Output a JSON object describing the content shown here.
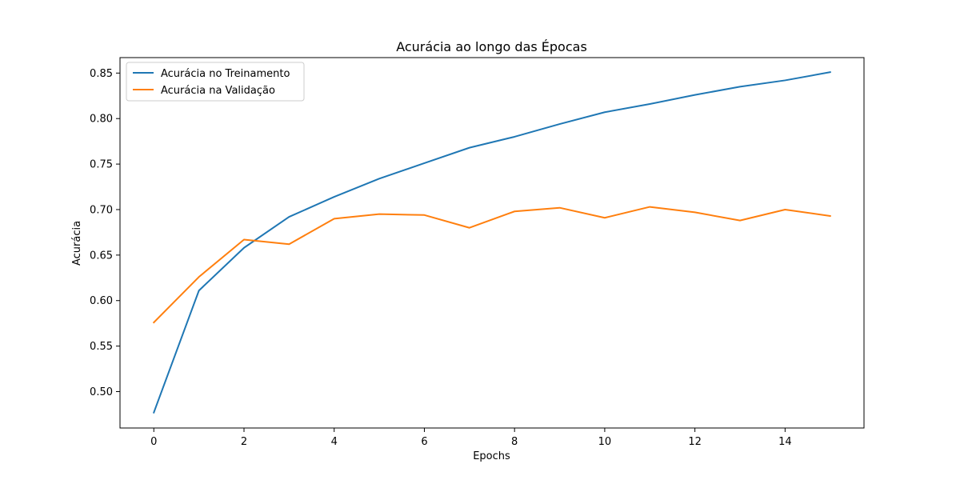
{
  "chart_data": {
    "type": "line",
    "title": "Acurácia ao longo das Épocas",
    "xlabel": "Epochs",
    "ylabel": "Acurácia",
    "xlim": [
      -0.75,
      15.75
    ],
    "ylim": [
      0.46,
      0.867
    ],
    "xticks": [
      0,
      2,
      4,
      6,
      8,
      10,
      12,
      14
    ],
    "xtick_labels": [
      "0",
      "2",
      "4",
      "6",
      "8",
      "10",
      "12",
      "14"
    ],
    "yticks": [
      0.5,
      0.55,
      0.6,
      0.65,
      0.7,
      0.75,
      0.8,
      0.85
    ],
    "ytick_labels": [
      "0.50",
      "0.55",
      "0.60",
      "0.65",
      "0.70",
      "0.75",
      "0.80",
      "0.85"
    ],
    "grid": false,
    "legend_position": "upper-left",
    "x": [
      0,
      1,
      2,
      3,
      4,
      5,
      6,
      7,
      8,
      9,
      10,
      11,
      12,
      13,
      14,
      15
    ],
    "series": [
      {
        "name": "Acurácia no Treinamento",
        "color": "#1f77b4",
        "values": [
          0.477,
          0.611,
          0.658,
          0.692,
          0.714,
          0.734,
          0.751,
          0.768,
          0.78,
          0.794,
          0.807,
          0.816,
          0.826,
          0.835,
          0.842,
          0.851
        ]
      },
      {
        "name": "Acurácia na Validação",
        "color": "#ff7f0e",
        "values": [
          0.576,
          0.626,
          0.667,
          0.662,
          0.69,
          0.695,
          0.694,
          0.68,
          0.698,
          0.702,
          0.691,
          0.703,
          0.697,
          0.688,
          0.7,
          0.693
        ]
      }
    ]
  }
}
